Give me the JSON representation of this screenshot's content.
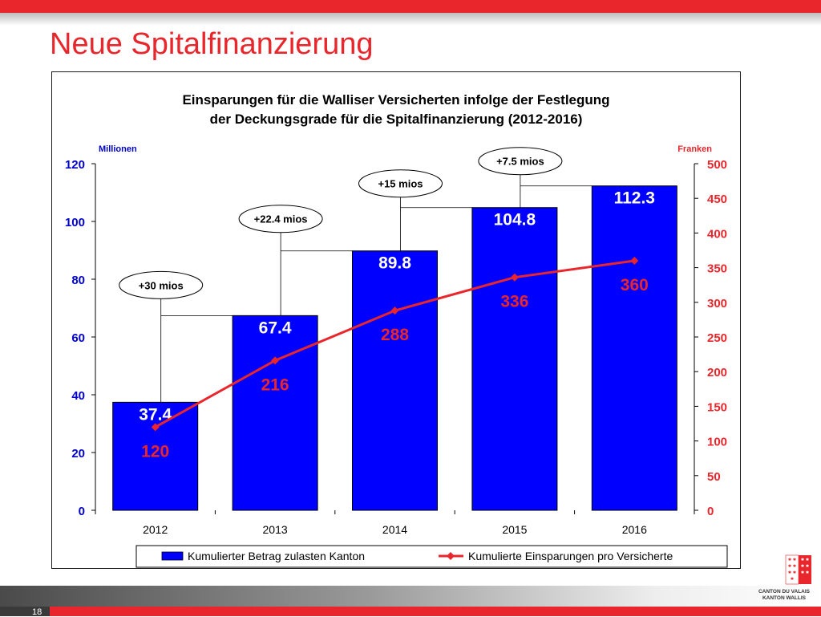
{
  "slide": {
    "title": "Neue Spitalfinanzierung",
    "page_number": "18"
  },
  "logo": {
    "line1": "CANTON DU VALAIS",
    "line2": "KANTON WALLIS"
  },
  "colors": {
    "accent": "#e8262b",
    "bar": "#0000ff",
    "line": "#e8262b",
    "axis_left": "#0000cc"
  },
  "chart_data": {
    "type": "bar",
    "title": "Einsparungen für die Walliser Versicherten infolge der Festlegung der Deckungsgrade für die Spitalfinanzierung (2012-2016)",
    "title_lines": [
      "Einsparungen für die Walliser Versicherten infolge der Festlegung",
      "der Deckungsgrade für die Spitalfinanzierung (2012-2016)"
    ],
    "ylabel": "Millionen",
    "y2label": "Franken",
    "categories": [
      "2012",
      "2013",
      "2014",
      "2015",
      "2016"
    ],
    "ylim": [
      0,
      120
    ],
    "yticks": [
      0,
      20,
      40,
      60,
      80,
      100,
      120
    ],
    "y2lim": [
      0,
      500
    ],
    "y2ticks": [
      0,
      50,
      100,
      150,
      200,
      250,
      300,
      350,
      400,
      450,
      500
    ],
    "series": [
      {
        "name": "Kumulierter Betrag zulasten Kanton",
        "type": "bar",
        "axis": "left",
        "values": [
          37.4,
          67.4,
          89.8,
          104.8,
          112.3
        ],
        "labels": [
          "37.4",
          "67.4",
          "89.8",
          "104.8",
          "112.3"
        ]
      },
      {
        "name": "Kumulierte Einsparungen pro Versicherte",
        "type": "line",
        "axis": "right",
        "values": [
          120,
          216,
          288,
          336,
          360
        ],
        "labels": [
          "120",
          "216",
          "288",
          "336",
          "360"
        ]
      }
    ],
    "callouts": [
      {
        "label": "+30 mios",
        "category": "2012"
      },
      {
        "label": "+22.4 mios",
        "category": "2013"
      },
      {
        "label": "+15 mios",
        "category": "2014"
      },
      {
        "label": "+7.5 mios",
        "category": "2015"
      }
    ],
    "legend": {
      "position": "bottom",
      "items": [
        "Kumulierter Betrag zulasten Kanton",
        "Kumulierte Einsparungen pro Versicherte"
      ]
    }
  }
}
